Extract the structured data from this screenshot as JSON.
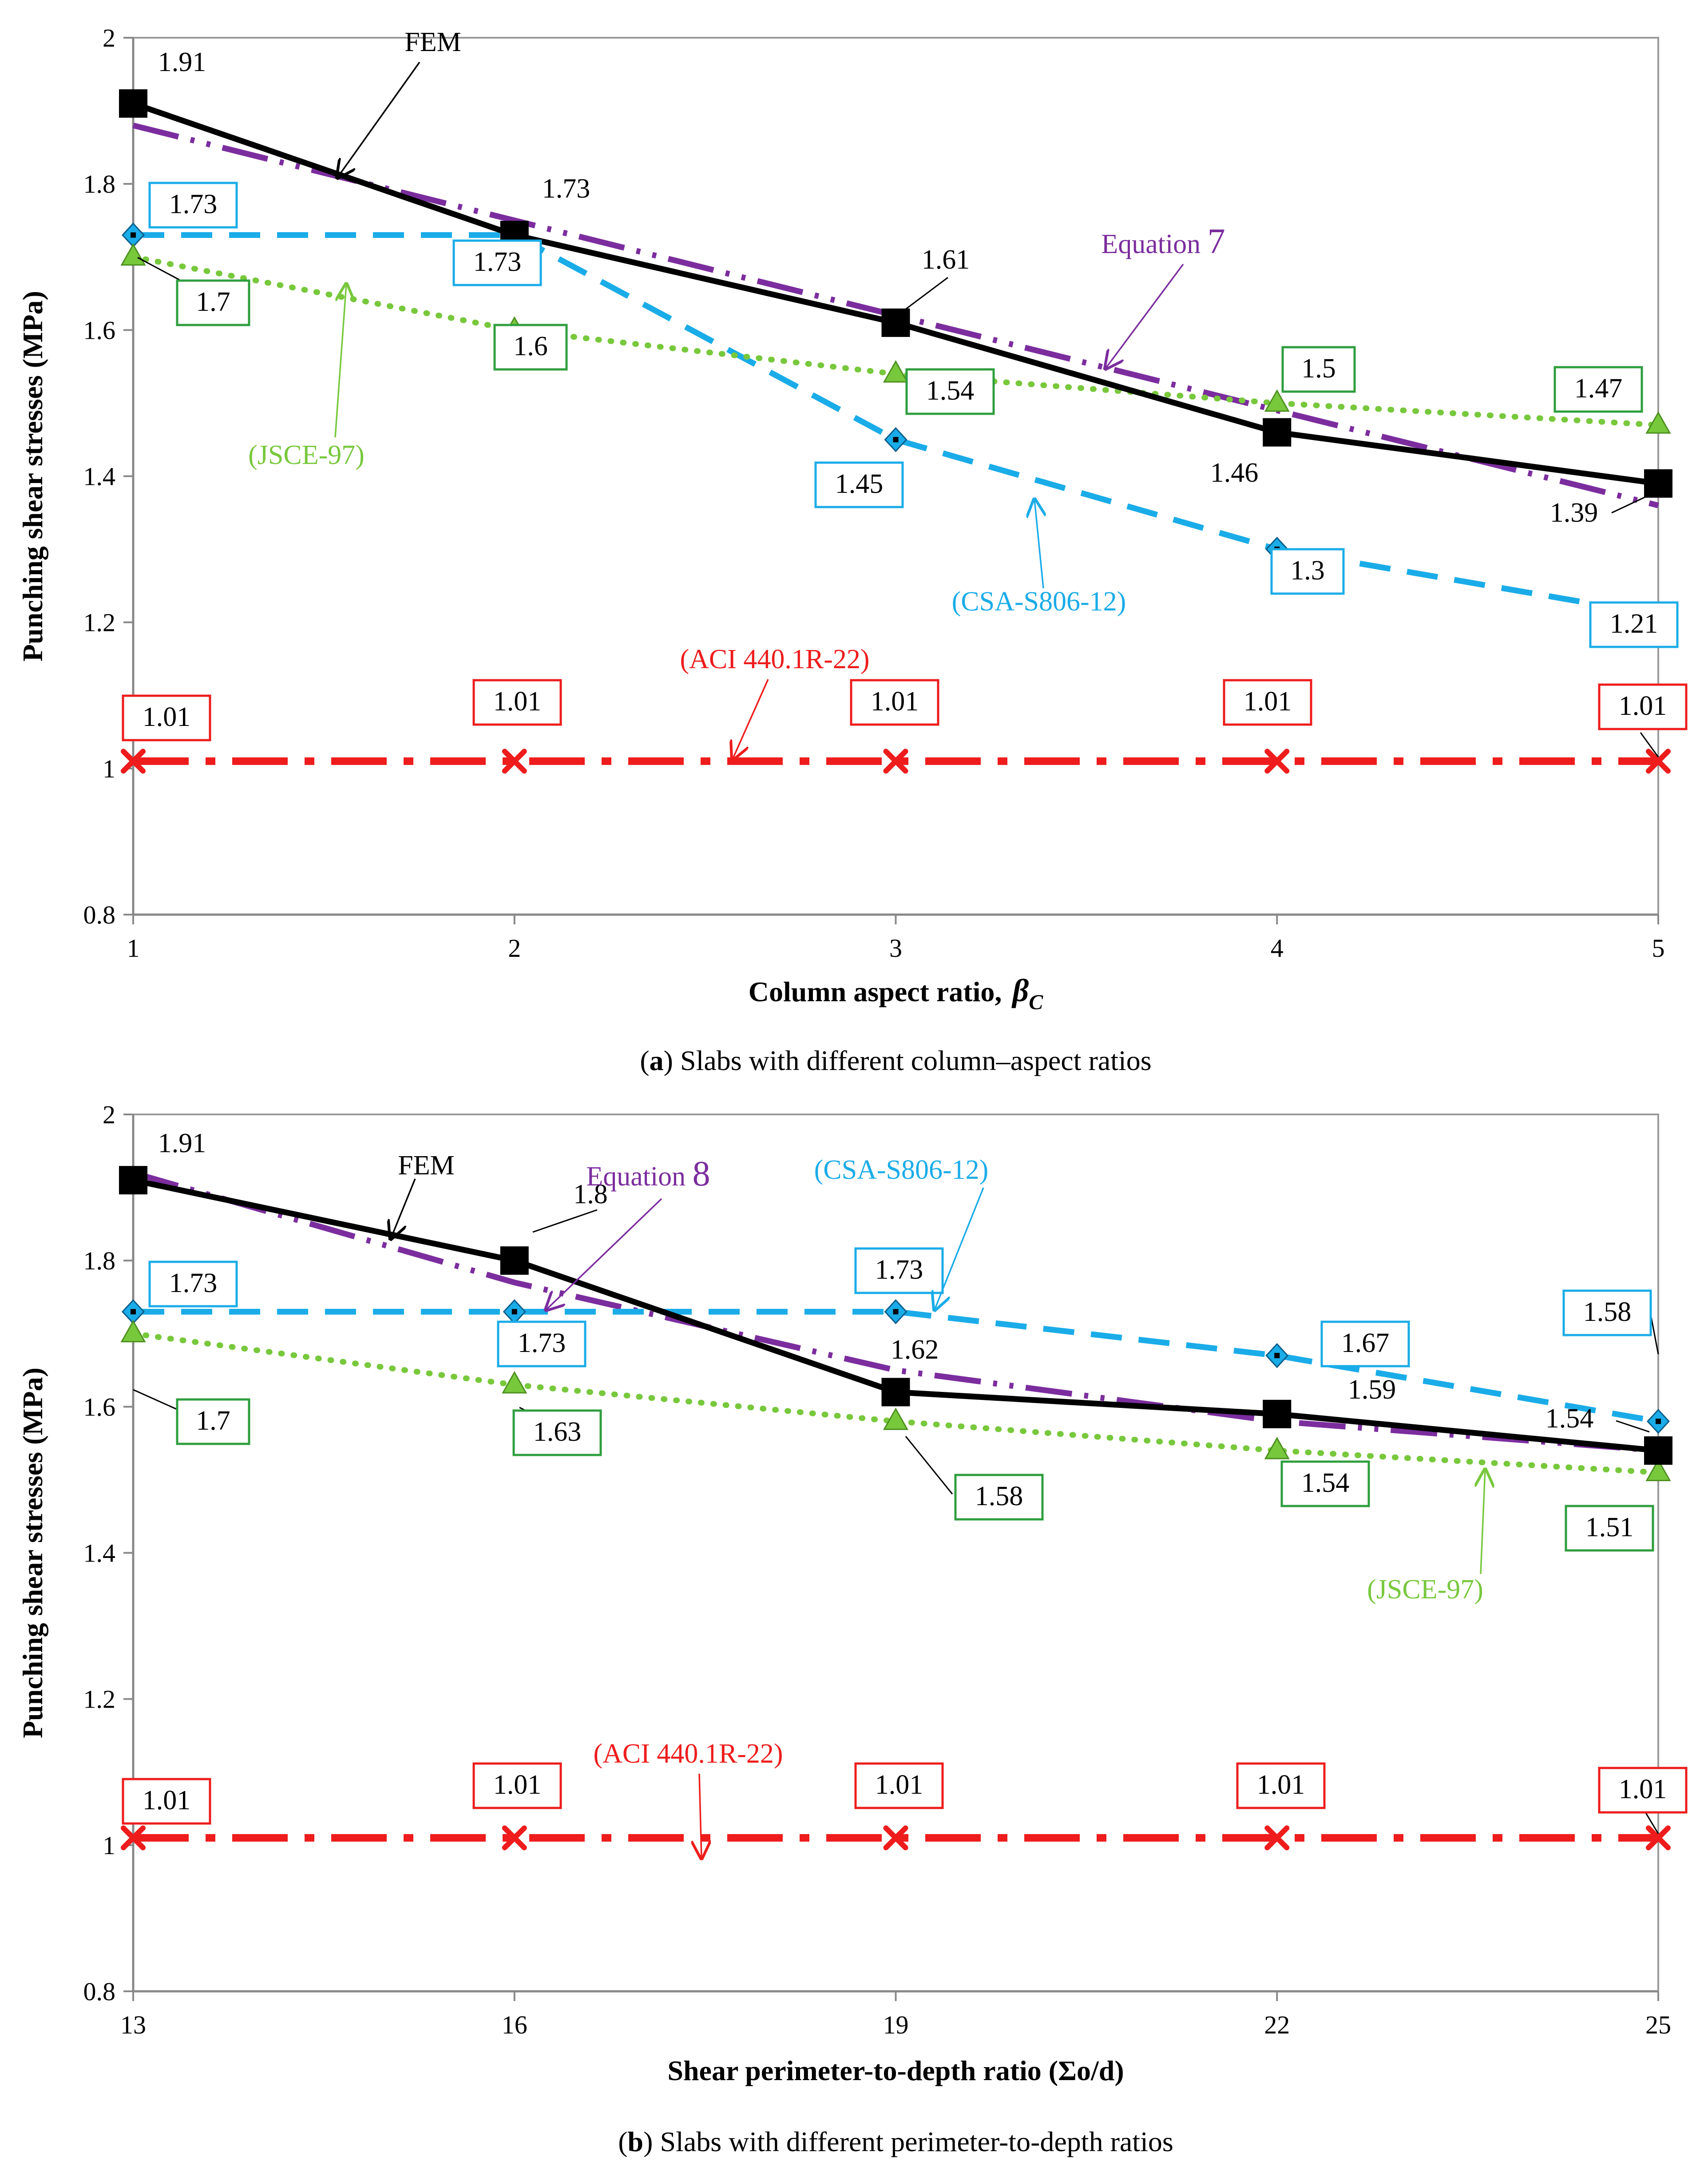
{
  "colors": {
    "fem": "#000000",
    "equation": "#7B2D9E",
    "csa": "#1AACE8",
    "jsce": "#78C83C",
    "jsce_box": "#2E9E3E",
    "aci": "#EE1C1C"
  },
  "chart_data": [
    {
      "type": "line",
      "ylabel": "Punching shear stresses (MPa)",
      "xlabel_main": "Column aspect ratio,",
      "xlabel_symbol": "β",
      "xlabel_sub": "C",
      "caption_letter": "a",
      "caption_text": " Slabs with different column–aspect ratios",
      "x": [
        1,
        2,
        3,
        4,
        5
      ],
      "x_ticks": [
        "1",
        "2",
        "3",
        "4",
        "5"
      ],
      "ylim": [
        0.8,
        2
      ],
      "y_ticks": [
        "0.8",
        "1",
        "1.2",
        "1.4",
        "1.6",
        "1.8",
        "2"
      ],
      "series": [
        {
          "key": "equation",
          "name": "Equation 7",
          "values": [
            1.88,
            1.75,
            1.62,
            1.49,
            1.36
          ]
        },
        {
          "key": "csa",
          "name": "(CSA-S806-12)",
          "values": [
            1.73,
            1.73,
            1.45,
            1.3,
            1.21
          ],
          "labels": [
            "1.73",
            "1.73",
            "1.45",
            "1.3",
            "1.21"
          ]
        },
        {
          "key": "jsce",
          "name": "(JSCE-97)",
          "values": [
            1.7,
            1.6,
            1.54,
            1.5,
            1.47
          ],
          "labels": [
            "1.7",
            "1.6",
            "1.54",
            "1.5",
            "1.47"
          ]
        },
        {
          "key": "aci",
          "name": "(ACI 440.1R-22)",
          "values": [
            1.01,
            1.01,
            1.01,
            1.01,
            1.01
          ],
          "labels": [
            "1.01",
            "1.01",
            "1.01",
            "1.01",
            "1.01"
          ]
        },
        {
          "key": "fem",
          "name": "FEM",
          "values": [
            1.91,
            1.73,
            1.61,
            1.46,
            1.39
          ],
          "labels": [
            "1.91",
            "1.73",
            "1.61",
            "1.46",
            "1.39"
          ]
        }
      ]
    },
    {
      "type": "line",
      "ylabel": "Punching shear stresses (MPa)",
      "xlabel_main": "Shear perimeter-to-depth ratio (Σo/d)",
      "caption_letter": "b",
      "caption_text": " Slabs with different perimeter-to-depth ratios",
      "x": [
        13,
        16,
        19,
        22,
        25
      ],
      "x_ticks": [
        "13",
        "16",
        "19",
        "22",
        "25"
      ],
      "ylim": [
        0.8,
        2
      ],
      "y_ticks": [
        "0.8",
        "1",
        "1.2",
        "1.4",
        "1.6",
        "1.8",
        "2"
      ],
      "series": [
        {
          "key": "equation",
          "name": "Equation 8",
          "values": [
            1.92,
            1.77,
            1.65,
            1.58,
            1.54
          ]
        },
        {
          "key": "csa",
          "name": "(CSA-S806-12)",
          "values": [
            1.73,
            1.73,
            1.73,
            1.67,
            1.58
          ],
          "labels": [
            "1.73",
            "1.73",
            "1.73",
            "1.67",
            "1.58"
          ]
        },
        {
          "key": "jsce",
          "name": "(JSCE-97)",
          "values": [
            1.7,
            1.63,
            1.58,
            1.54,
            1.51
          ],
          "labels": [
            "1.7",
            "1.63",
            "1.58",
            "1.54",
            "1.51"
          ]
        },
        {
          "key": "aci",
          "name": "(ACI 440.1R-22)",
          "values": [
            1.01,
            1.01,
            1.01,
            1.01,
            1.01
          ],
          "labels": [
            "1.01",
            "1.01",
            "1.01",
            "1.01",
            "1.01"
          ]
        },
        {
          "key": "fem",
          "name": "FEM",
          "values": [
            1.91,
            1.8,
            1.62,
            1.59,
            1.54
          ],
          "labels": [
            "1.91",
            "1.8",
            "1.62",
            "1.59",
            "1.54"
          ]
        }
      ]
    }
  ]
}
